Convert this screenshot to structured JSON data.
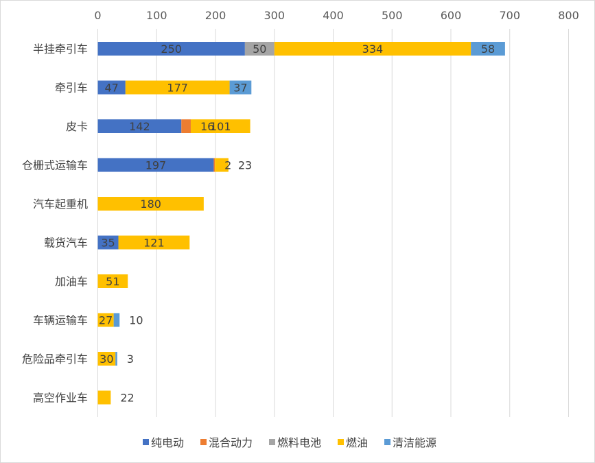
{
  "chart_data": {
    "type": "bar",
    "orientation": "horizontal",
    "stacked": true,
    "title": "",
    "xlabel": "",
    "ylabel": "",
    "xlim": [
      0,
      800
    ],
    "xticks": [
      0,
      100,
      200,
      300,
      400,
      500,
      600,
      700,
      800
    ],
    "grid": true,
    "legend_position": "bottom",
    "categories": [
      "半挂牵引车",
      "牵引车",
      "皮卡",
      "仓栅式运输车",
      "汽车起重机",
      "载货汽车",
      "加油车",
      "车辆运输车",
      "危险品牵引车",
      "高空作业车"
    ],
    "series": [
      {
        "name": "纯电动",
        "color": "#4472C4",
        "values": [
          250,
          47,
          142,
          197,
          0,
          35,
          0,
          0,
          0,
          0
        ]
      },
      {
        "name": "混合动力",
        "color": "#ED7D31",
        "values": [
          0,
          0,
          16,
          2,
          0,
          0,
          0,
          0,
          0,
          0
        ]
      },
      {
        "name": "燃料电池",
        "color": "#A5A5A5",
        "values": [
          50,
          0,
          0,
          0,
          0,
          0,
          0,
          0,
          0,
          0
        ]
      },
      {
        "name": "燃油",
        "color": "#FFC000",
        "values": [
          334,
          177,
          101,
          23,
          180,
          121,
          51,
          27,
          30,
          22
        ]
      },
      {
        "name": "清洁能源",
        "color": "#5B9BD5",
        "values": [
          58,
          37,
          0,
          0,
          0,
          0,
          0,
          10,
          3,
          0
        ]
      }
    ]
  }
}
